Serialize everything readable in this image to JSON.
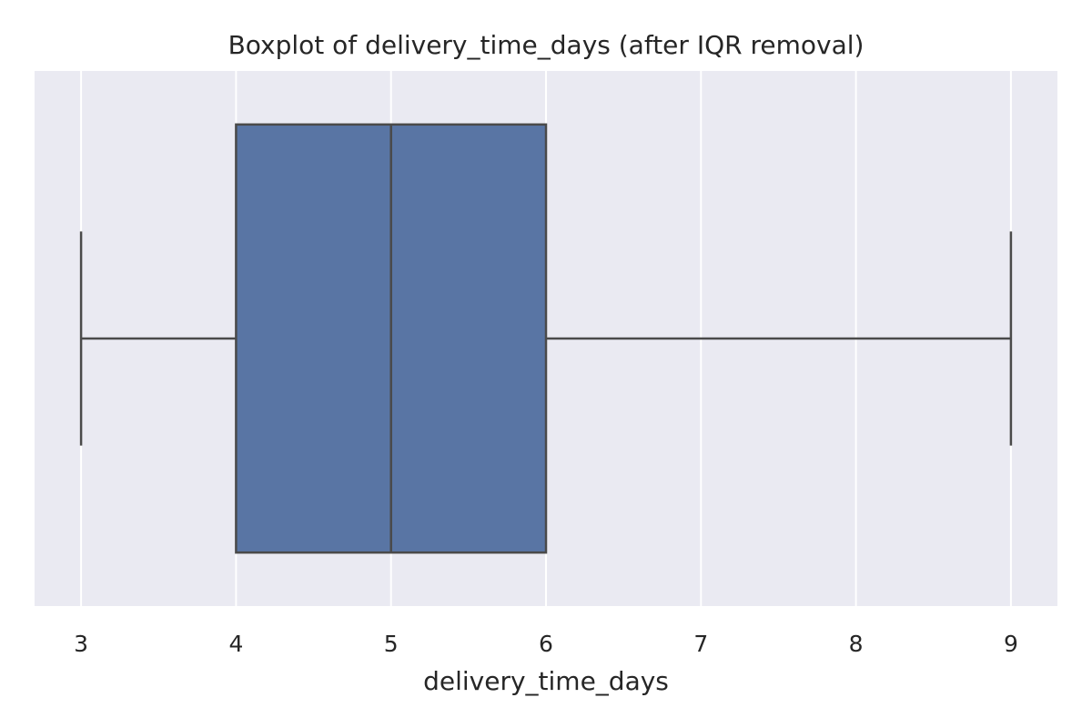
{
  "chart_data": {
    "type": "box",
    "title": "Boxplot of delivery_time_days (after IQR removal)",
    "xlabel": "delivery_time_days",
    "ylabel": "",
    "orientation": "horizontal",
    "xlim": [
      2.7,
      9.3
    ],
    "xticks": [
      3,
      4,
      5,
      6,
      7,
      8,
      9
    ],
    "xtick_labels": [
      "3",
      "4",
      "5",
      "6",
      "7",
      "8",
      "9"
    ],
    "grid": true,
    "series": [
      {
        "whisker_low": 3,
        "q1": 4,
        "median": 5,
        "q3": 6,
        "whisker_high": 9
      }
    ]
  },
  "colors": {
    "figure_background": "#ffffff",
    "plot_background": "#eaeaf2",
    "grid": "#ffffff",
    "box_fill": "#5975a4",
    "box_line": "#4a4a4a",
    "text": "#262626"
  }
}
